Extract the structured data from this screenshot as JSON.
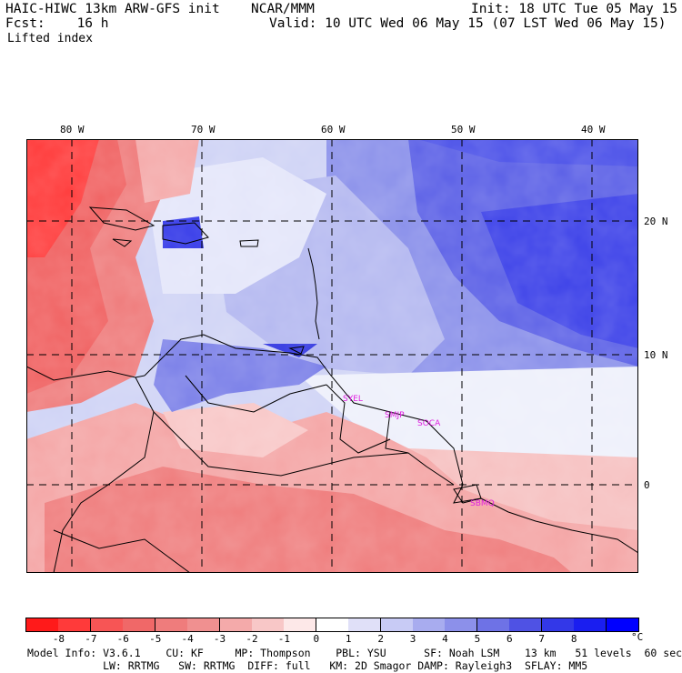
{
  "header": {
    "model": "HAIC-HIWC 13km ARW-GFS init",
    "org": "NCAR/MMM",
    "init": "Init: 18 UTC Tue 05 May 15",
    "fcst": "Fcst:    16 h",
    "valid": "Valid: 10 UTC Wed 06 May 15 (07 LST Wed 06 May 15)",
    "field": "Lifted index"
  },
  "map": {
    "lon_labels": [
      "80 W",
      "70 W",
      "60 W",
      "50 W",
      "40 W"
    ],
    "lat_labels": [
      "20 N",
      "10 N",
      "0"
    ],
    "stations": [
      "SYEL",
      "SMJP",
      "SOCA",
      "SBMQ"
    ]
  },
  "colorbar": {
    "ticks": [
      "-8",
      "-7",
      "-6",
      "-5",
      "-4",
      "-3",
      "-2",
      "-1",
      "0",
      "1",
      "2",
      "3",
      "4",
      "5",
      "6",
      "7",
      "8"
    ],
    "unit": "°C",
    "colors": [
      "#ff1a1a",
      "#ff3a3a",
      "#f75555",
      "#f06868",
      "#ef7c7c",
      "#f09090",
      "#f4aaaa",
      "#f8c7c7",
      "#fde8e8",
      "#ffffff",
      "#e0e0f8",
      "#c8cbf5",
      "#a8acef",
      "#8c90ea",
      "#6e72e6",
      "#4f52e4",
      "#3338e8",
      "#1a1ef0",
      "#0000ff"
    ]
  },
  "info": {
    "line1": "Model Info: V3.6.1    CU: KF     MP: Thompson    PBL: YSU      SF: Noah LSM    13 km   51 levels  60 sec",
    "line2": "            LW: RRTMG   SW: RRTMG  DIFF: full   KM: 2D Smagor DAMP: Rayleigh3  SFLAY: MM5"
  }
}
